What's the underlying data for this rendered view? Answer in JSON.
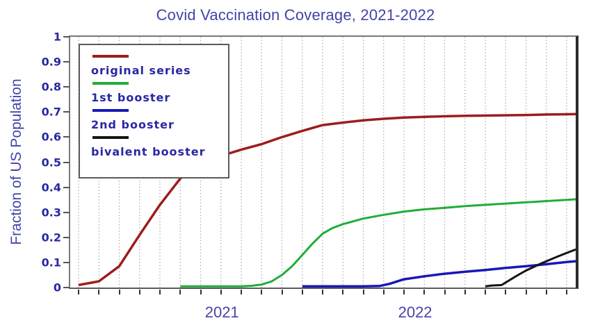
{
  "title": "Covid Vaccination Coverage, 2021-2022",
  "y_axis": {
    "label": "Fraction of US Population",
    "ticks": [
      {
        "label": "1",
        "value": 1.0
      },
      {
        "label": "0.9",
        "value": 0.9
      },
      {
        "label": "0.8",
        "value": 0.8
      },
      {
        "label": "0.7",
        "value": 0.7
      },
      {
        "label": "0.6",
        "value": 0.6
      },
      {
        "label": "0.5",
        "value": 0.5
      },
      {
        "label": "0.4",
        "value": 0.4
      },
      {
        "label": "0.3",
        "value": 0.3
      },
      {
        "label": "0.2",
        "value": 0.2
      },
      {
        "label": "0.1",
        "value": 0.1
      },
      {
        "label": "0",
        "value": 0.0
      }
    ]
  },
  "x_axis": {
    "year_labels": [
      {
        "text": "2021",
        "month": 7.05
      },
      {
        "text": "2022",
        "month": 16.55
      }
    ],
    "tick_count": 25
  },
  "colors": {
    "title_text": "#4343a8",
    "tick_text": "#2828a4",
    "gridline": "#a8a8a8",
    "frame": "#787878"
  },
  "chart_data": {
    "type": "line",
    "title": "Covid Vaccination Coverage, 2021-2022",
    "xlabel": "",
    "ylabel": "Fraction of US Population",
    "ylim": [
      0,
      1
    ],
    "xlim_months": [
      0,
      24.45
    ],
    "x_unit": "month index across 2021-2022 (one vertical dotted gridline per month, 25 ticks)",
    "grid": "vertical dotted monthly gridlines only",
    "legend_position": "upper left",
    "x_tick_labels_shown": [
      "2021",
      "2022"
    ],
    "series": [
      {
        "name": "original series",
        "color": "#9e1c1c",
        "width": 3.5,
        "points": [
          [
            0,
            0.01
          ],
          [
            1,
            0.025
          ],
          [
            2,
            0.085
          ],
          [
            3,
            0.21
          ],
          [
            4,
            0.33
          ],
          [
            5,
            0.435
          ],
          [
            6,
            0.5
          ],
          [
            7,
            0.525
          ],
          [
            8,
            0.55
          ],
          [
            9,
            0.572
          ],
          [
            10,
            0.6
          ],
          [
            11,
            0.625
          ],
          [
            12,
            0.648
          ],
          [
            13,
            0.658
          ],
          [
            14,
            0.667
          ],
          [
            15,
            0.673
          ],
          [
            16,
            0.678
          ],
          [
            17,
            0.681
          ],
          [
            18,
            0.683
          ],
          [
            19,
            0.685
          ],
          [
            20,
            0.686
          ],
          [
            21,
            0.687
          ],
          [
            22,
            0.688
          ],
          [
            23,
            0.69
          ],
          [
            24,
            0.691
          ],
          [
            24.45,
            0.692
          ]
        ]
      },
      {
        "name": "1st booster",
        "color": "#1fad38",
        "width": 3,
        "points": [
          [
            5,
            0.005
          ],
          [
            6,
            0.005
          ],
          [
            7,
            0.005
          ],
          [
            8,
            0.005
          ],
          [
            8.5,
            0.007
          ],
          [
            9,
            0.012
          ],
          [
            9.5,
            0.025
          ],
          [
            10,
            0.05
          ],
          [
            10.5,
            0.085
          ],
          [
            11,
            0.13
          ],
          [
            11.5,
            0.175
          ],
          [
            12,
            0.215
          ],
          [
            12.5,
            0.238
          ],
          [
            13,
            0.253
          ],
          [
            14,
            0.275
          ],
          [
            15,
            0.29
          ],
          [
            16,
            0.303
          ],
          [
            17,
            0.312
          ],
          [
            18,
            0.318
          ],
          [
            19,
            0.325
          ],
          [
            20,
            0.33
          ],
          [
            21,
            0.335
          ],
          [
            22,
            0.34
          ],
          [
            23,
            0.345
          ],
          [
            24,
            0.35
          ],
          [
            24.45,
            0.352
          ]
        ]
      },
      {
        "name": "2nd booster",
        "color": "#1818b8",
        "width": 3.5,
        "points": [
          [
            11,
            0.005
          ],
          [
            12,
            0.005
          ],
          [
            13,
            0.005
          ],
          [
            14,
            0.005
          ],
          [
            14.8,
            0.006
          ],
          [
            15.3,
            0.015
          ],
          [
            16,
            0.033
          ],
          [
            17,
            0.045
          ],
          [
            18,
            0.055
          ],
          [
            19,
            0.063
          ],
          [
            20,
            0.07
          ],
          [
            21,
            0.078
          ],
          [
            22,
            0.085
          ],
          [
            23,
            0.093
          ],
          [
            24,
            0.102
          ],
          [
            24.45,
            0.105
          ]
        ]
      },
      {
        "name": "bivalent booster",
        "color": "#141414",
        "width": 3,
        "points": [
          [
            20,
            0.005
          ],
          [
            20.3,
            0.008
          ],
          [
            20.8,
            0.01
          ],
          [
            21.5,
            0.045
          ],
          [
            22,
            0.068
          ],
          [
            22.8,
            0.098
          ],
          [
            23.5,
            0.122
          ],
          [
            24,
            0.138
          ],
          [
            24.45,
            0.152
          ]
        ]
      }
    ]
  }
}
